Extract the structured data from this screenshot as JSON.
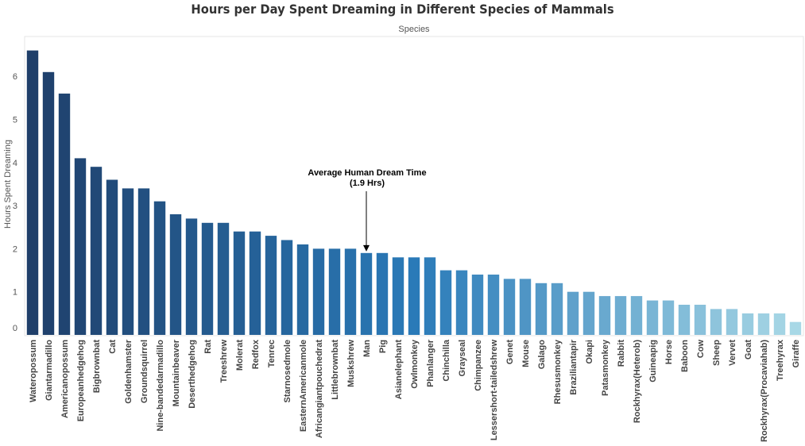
{
  "chart_data": {
    "type": "bar",
    "title": "Hours per Day Spent Dreaming in Different Species of Mammals",
    "xlabel": "Species",
    "ylabel": "Hours Spent Dreaming",
    "ylim": [
      0,
      7
    ],
    "yticks": [
      0,
      1,
      2,
      3,
      4,
      5,
      6
    ],
    "grid": false,
    "categories": [
      "Wateropossum",
      "Giantarmadillo",
      "Americanopossum",
      "Europeanhedgehog",
      "Bigbrownbat",
      "Cat",
      "Goldenhamster",
      "Groundsquirrel",
      "Nine-bandedarmadillo",
      "Mountainbeaver",
      "Deserthedgehog",
      "Rat",
      "Treeshrew",
      "Molerat",
      "Redfox",
      "Tenrec",
      "Starnosedmole",
      "EasternAmericanmole",
      "Africangiantpouchedrat",
      "Littlebrownbat",
      "Muskshrew",
      "Man",
      "Pig",
      "Asianelephant",
      "Owlmonkey",
      "Phanlanger",
      "Chinchilla",
      "Grayseal",
      "Chimpanzee",
      "Lessershort-tailedshrew",
      "Genet",
      "Mouse",
      "Galago",
      "Rhesusmonkey",
      "Braziliantapir",
      "Okapi",
      "Patasmonkey",
      "Rabbit",
      "Rockhyrax(Heterob)",
      "Guineapig",
      "Horse",
      "Baboon",
      "Cow",
      "Sheep",
      "Vervet",
      "Goat",
      "Rockhyrax(Procaviahab)",
      "Treehyrax",
      "Giraffe"
    ],
    "values": [
      6.6,
      6.1,
      5.6,
      4.1,
      3.9,
      3.6,
      3.4,
      3.4,
      3.1,
      2.8,
      2.7,
      2.6,
      2.6,
      2.4,
      2.4,
      2.3,
      2.2,
      2.1,
      2.0,
      2.0,
      2.0,
      1.9,
      1.9,
      1.8,
      1.8,
      1.8,
      1.5,
      1.5,
      1.4,
      1.4,
      1.3,
      1.3,
      1.2,
      1.2,
      1.0,
      1.0,
      0.9,
      0.9,
      0.9,
      0.8,
      0.8,
      0.7,
      0.7,
      0.6,
      0.6,
      0.5,
      0.5,
      0.5,
      0.3
    ],
    "color_start": "#1f3f6a",
    "color_mid": "#2a7ab8",
    "color_end": "#a8d8e6",
    "annotation": {
      "text_line1": "Average Human Dream Time",
      "text_line2": "(1.9 Hrs)",
      "target": "Man"
    }
  }
}
